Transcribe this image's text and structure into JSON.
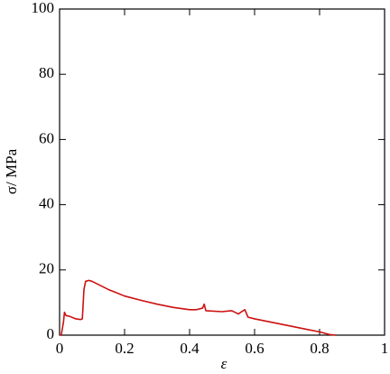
{
  "chart_data": {
    "type": "line",
    "x_label": "ε",
    "y_label": "σ/ MPa",
    "x": [
      0,
      0.005,
      0.012,
      0.015,
      0.02,
      0.03,
      0.05,
      0.065,
      0.07,
      0.075,
      0.08,
      0.09,
      0.1,
      0.15,
      0.2,
      0.25,
      0.3,
      0.35,
      0.4,
      0.42,
      0.44,
      0.445,
      0.45,
      0.5,
      0.53,
      0.55,
      0.56,
      0.57,
      0.58,
      0.6,
      0.65,
      0.7,
      0.75,
      0.8,
      0.83,
      0.85
    ],
    "series": [
      {
        "color": "#cc1111",
        "values": [
          0,
          0,
          4,
          7,
          6,
          5.8,
          5,
          4.8,
          5,
          14,
          16.5,
          16.8,
          16.5,
          14,
          12,
          10.7,
          9.5,
          8.5,
          7.8,
          7.8,
          8.3,
          9.5,
          7.5,
          7.2,
          7.5,
          6.5,
          7.2,
          7.8,
          5.5,
          5,
          4,
          3,
          2,
          1,
          0.2,
          0
        ]
      }
    ],
    "xlim": [
      0,
      1
    ],
    "ylim": [
      0,
      100
    ],
    "xticks": [
      0,
      0.2,
      0.4,
      0.6,
      0.8,
      1
    ],
    "yticks": [
      0,
      20,
      40,
      60,
      80,
      100
    ]
  }
}
